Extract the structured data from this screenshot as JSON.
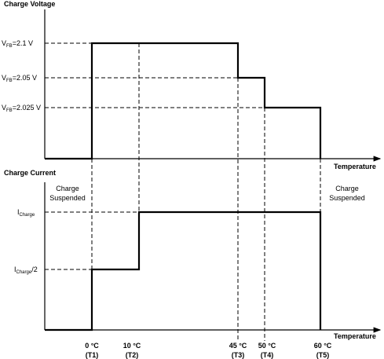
{
  "voltage_chart": {
    "title": "Charge Voltage",
    "axis_label": "Temperature",
    "levels": [
      {
        "symbol": "V",
        "subscript": "FB",
        "suffix": "=2.1 V"
      },
      {
        "symbol": "V",
        "subscript": "FB",
        "suffix": "=2.05 V"
      },
      {
        "symbol": "V",
        "subscript": "FB",
        "suffix": "=2.025 V"
      }
    ]
  },
  "current_chart": {
    "title": "Charge Current",
    "axis_label": "Temperature",
    "levels": [
      {
        "symbol": "I",
        "subscript": "Charge"
      },
      {
        "symbol": "I",
        "subscript": "Charge",
        "suffix": "/2"
      }
    ],
    "regions": [
      [
        "Charge",
        "Suspended"
      ],
      [
        "Charge",
        "Suspended"
      ]
    ]
  },
  "temperatures": [
    {
      "temp": "0 °C",
      "name": "(T1)"
    },
    {
      "temp": "10 °C",
      "name": "(T2)"
    },
    {
      "temp": "45 °C",
      "name": "(T3)"
    },
    {
      "temp": "50 °C",
      "name": "(T4)"
    },
    {
      "temp": "60 °C",
      "name": "(T5)"
    }
  ]
}
